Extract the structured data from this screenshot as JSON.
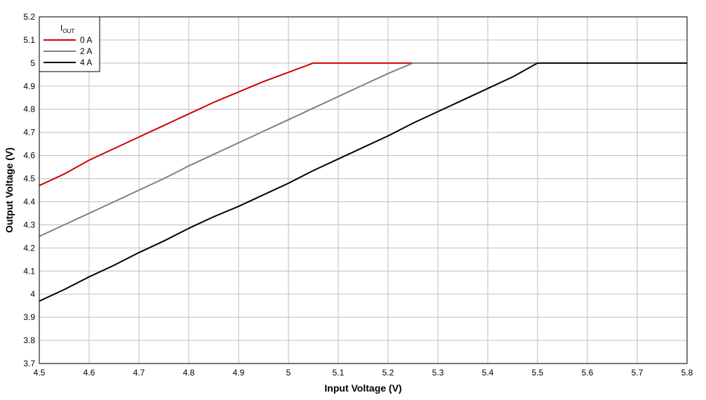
{
  "chart_data": {
    "type": "line",
    "xlabel": "Input Voltage (V)",
    "ylabel": "Output Voltage (V)",
    "xlim": [
      4.5,
      5.8
    ],
    "ylim": [
      3.7,
      5.2
    ],
    "x_ticks": [
      "4.5",
      "4.6",
      "4.7",
      "4.8",
      "4.9",
      "5",
      "5.1",
      "5.2",
      "5.3",
      "5.4",
      "5.5",
      "5.6",
      "5.7",
      "5.8"
    ],
    "y_ticks": [
      "3.7",
      "3.8",
      "3.9",
      "4",
      "4.1",
      "4.2",
      "4.3",
      "4.4",
      "4.5",
      "4.6",
      "4.7",
      "4.8",
      "4.9",
      "5",
      "5.1",
      "5.2"
    ],
    "grid": true,
    "legend": {
      "title_main": "I",
      "title_sub": "OUT",
      "position": "top-left"
    },
    "series": [
      {
        "name": "0 A",
        "color": "#d00000",
        "x": [
          4.5,
          4.55,
          4.6,
          4.65,
          4.7,
          4.75,
          4.8,
          4.85,
          4.9,
          4.95,
          5.0,
          5.05,
          5.25
        ],
        "y": [
          4.47,
          4.52,
          4.58,
          4.63,
          4.68,
          4.73,
          4.78,
          4.83,
          4.875,
          4.92,
          4.96,
          5.0,
          5.0
        ]
      },
      {
        "name": "2 A",
        "color": "#808080",
        "x": [
          4.5,
          4.55,
          4.6,
          4.65,
          4.7,
          4.75,
          4.8,
          4.85,
          4.9,
          4.95,
          5.0,
          5.05,
          5.1,
          5.15,
          5.2,
          5.25,
          5.5
        ],
        "y": [
          4.25,
          4.3,
          4.35,
          4.4,
          4.45,
          4.5,
          4.555,
          4.605,
          4.655,
          4.705,
          4.755,
          4.805,
          4.855,
          4.905,
          4.955,
          5.0,
          5.0
        ]
      },
      {
        "name": "4 A",
        "color": "#000000",
        "x": [
          4.5,
          4.55,
          4.6,
          4.65,
          4.7,
          4.75,
          4.8,
          4.85,
          4.9,
          4.95,
          5.0,
          5.05,
          5.1,
          5.15,
          5.2,
          5.25,
          5.3,
          5.35,
          5.4,
          5.45,
          5.5,
          5.8
        ],
        "y": [
          3.97,
          4.02,
          4.075,
          4.125,
          4.18,
          4.23,
          4.285,
          4.335,
          4.38,
          4.43,
          4.48,
          4.535,
          4.585,
          4.635,
          4.685,
          4.74,
          4.79,
          4.84,
          4.89,
          4.94,
          5.0,
          5.0
        ]
      }
    ]
  }
}
